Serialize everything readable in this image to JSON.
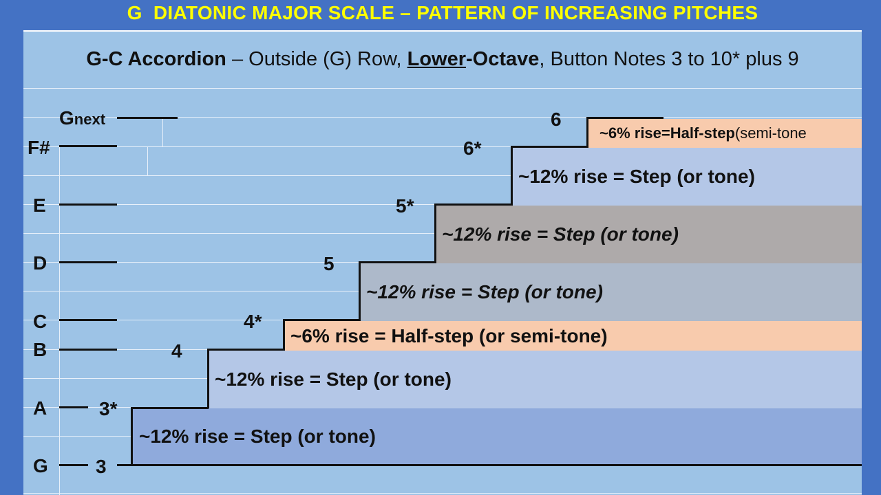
{
  "title": "G  DIATONIC MAJOR SCALE – PATTERN OF INCREASING PITCHES",
  "subtitle": {
    "instrument": "G-C Accordion",
    "dash_text": " – Outside (G) Row,",
    "octave_a": "Lower",
    "octave_b": "-Octave",
    "rest": ", Button Notes 3 to 10* plus 9"
  },
  "notes": {
    "g_next_prefix": "G",
    "g_next_suffix": "next",
    "f_sharp": "F#",
    "e": "E",
    "d": "D",
    "c": "C",
    "b": "B",
    "a": "A",
    "g": "G"
  },
  "buttons": {
    "b3": "3",
    "b3s": "3*",
    "b4": "4",
    "b4s": "4*",
    "b5": "5",
    "b5s": "5*",
    "b6s": "6*",
    "b6": "6"
  },
  "intervals": {
    "g_a": "~12% rise = Step  (or tone)",
    "a_b": "~12% rise = Step  (or tone)",
    "b_c": "~6% rise = Half-step  (or semi-tone)",
    "c_d": "~12% rise = Step  (or tone)",
    "d_e": "~12% rise = Step  (or tone)",
    "e_fs": "~12% rise = Step  (or tone)",
    "fs_g_bold": "~6%  rise=Half-step",
    "fs_g_rest": " (semi-tone"
  },
  "colors": {
    "background": "#4472c4",
    "panel": "#9dc3e6",
    "title": "#ffff00",
    "step_blue_dark": "#8faadc",
    "step_blue_light": "#b4c7e7",
    "half_step_peach": "#f8cbad",
    "step_grey": "#adb9ca",
    "step_grey_dark": "#aeaaaa"
  }
}
